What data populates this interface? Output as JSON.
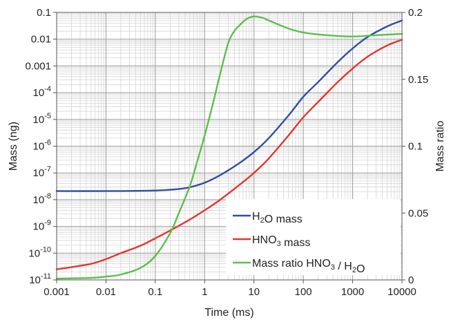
{
  "chart_data": {
    "type": "line",
    "x_axis": {
      "label": "Time (ms)",
      "scale": "log",
      "range": [
        0.001,
        10000
      ],
      "ticks": [
        {
          "value": 0.001,
          "label": "0.001"
        },
        {
          "value": 0.01,
          "label": "0.01"
        },
        {
          "value": 0.1,
          "label": "0.1"
        },
        {
          "value": 1,
          "label": "1"
        },
        {
          "value": 10,
          "label": "10"
        },
        {
          "value": 100,
          "label": "100"
        },
        {
          "value": 1000,
          "label": "1000"
        },
        {
          "value": 10000,
          "label": "10000"
        }
      ]
    },
    "y_axis_left": {
      "label": "Mass (ng)",
      "scale": "log",
      "range": [
        1e-11,
        0.1
      ],
      "ticks": [
        {
          "value": 0.1,
          "label": "0.1"
        },
        {
          "value": 0.01,
          "label": "0.01"
        },
        {
          "value": 0.001,
          "label": "0.001"
        },
        {
          "value": 0.0001,
          "base": "10",
          "exp": "-4"
        },
        {
          "value": 1e-05,
          "base": "10",
          "exp": "-5"
        },
        {
          "value": 1e-06,
          "base": "10",
          "exp": "-6"
        },
        {
          "value": 1e-07,
          "base": "10",
          "exp": "-7"
        },
        {
          "value": 1e-08,
          "base": "10",
          "exp": "-8"
        },
        {
          "value": 1e-09,
          "base": "10",
          "exp": "-9"
        },
        {
          "value": 1e-10,
          "base": "10",
          "exp": "-10"
        },
        {
          "value": 1e-11,
          "base": "10",
          "exp": "-11"
        }
      ]
    },
    "y_axis_right": {
      "label": "Mass ratio",
      "scale": "linear",
      "range": [
        0,
        0.2
      ],
      "ticks": [
        {
          "value": 0,
          "label": "0"
        },
        {
          "value": 0.05,
          "label": "0.05"
        },
        {
          "value": 0.1,
          "label": "0.1"
        },
        {
          "value": 0.15,
          "label": "0.15"
        },
        {
          "value": 0.2,
          "label": "0.2"
        }
      ]
    },
    "grid": true,
    "legend_position": "bottom-right",
    "series": [
      {
        "key": "h2o",
        "legend": {
          "parts": [
            {
              "t": "H"
            },
            {
              "t": "2",
              "sub": true
            },
            {
              "t": "O mass"
            }
          ]
        },
        "axis": "left",
        "color": "#2e4f9e",
        "x": [
          0.001,
          0.01,
          0.1,
          0.3,
          0.5,
          1,
          2,
          5,
          10,
          20,
          50,
          100,
          200,
          500,
          1000,
          2000,
          5000,
          10000
        ],
        "y": [
          2.1e-08,
          2.1e-08,
          2.2e-08,
          2.5e-08,
          2.9e-08,
          4.3e-08,
          8e-08,
          2.3e-07,
          6e-07,
          2e-06,
          1.4e-05,
          7e-05,
          0.00025,
          0.0014,
          0.0045,
          0.012,
          0.03,
          0.05
        ]
      },
      {
        "key": "hno3",
        "legend": {
          "parts": [
            {
              "t": "HNO"
            },
            {
              "t": "3",
              "sub": true
            },
            {
              "t": " mass"
            }
          ]
        },
        "axis": "left",
        "color": "#e8332a",
        "x": [
          0.001,
          0.002,
          0.005,
          0.01,
          0.02,
          0.05,
          0.1,
          0.2,
          0.5,
          1,
          2,
          5,
          10,
          20,
          50,
          100,
          200,
          500,
          1000,
          2000,
          5000,
          10000
        ],
        "y": [
          2.5e-11,
          3e-11,
          4e-11,
          6e-11,
          1e-10,
          1.9e-10,
          3.6e-10,
          7e-10,
          1.8e-09,
          4e-09,
          9.5e-09,
          3.5e-08,
          1e-07,
          3.5e-07,
          2.5e-06,
          1.2e-05,
          4.5e-05,
          0.00025,
          0.0008,
          0.0022,
          0.0058,
          0.0095
        ]
      },
      {
        "key": "ratio",
        "legend": {
          "parts": [
            {
              "t": "Mass ratio HNO"
            },
            {
              "t": "3",
              "sub": true
            },
            {
              "t": " / H"
            },
            {
              "t": "2",
              "sub": true
            },
            {
              "t": "O"
            }
          ]
        },
        "axis": "right",
        "color": "#5cbf4a",
        "x": [
          0.001,
          0.005,
          0.01,
          0.02,
          0.05,
          0.1,
          0.2,
          0.3,
          0.5,
          0.7,
          1,
          1.5,
          2,
          3,
          4,
          5,
          7,
          10,
          15,
          20,
          50,
          100,
          300,
          1000,
          3000,
          10000
        ],
        "y": [
          0.001,
          0.0015,
          0.0025,
          0.004,
          0.009,
          0.018,
          0.035,
          0.05,
          0.07,
          0.088,
          0.108,
          0.133,
          0.152,
          0.177,
          0.186,
          0.19,
          0.195,
          0.197,
          0.196,
          0.194,
          0.188,
          0.185,
          0.183,
          0.182,
          0.183,
          0.184
        ]
      }
    ]
  }
}
